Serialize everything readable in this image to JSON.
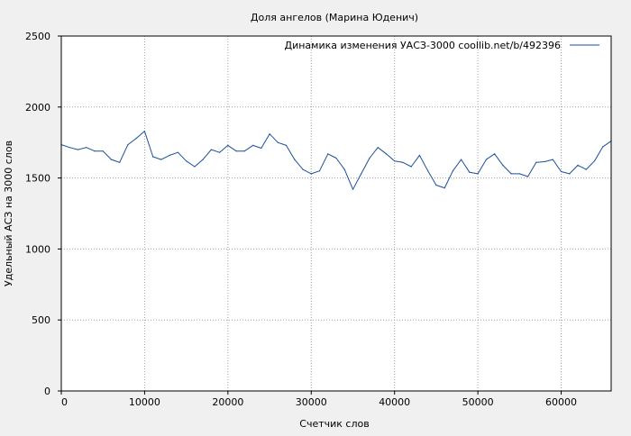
{
  "chart_data": {
    "type": "line",
    "title": "Доля ангелов (Марина Юденич)",
    "xlabel": "Счетчик слов",
    "ylabel": "Удельный АСЗ на 3000 слов",
    "xlim": [
      0,
      66000
    ],
    "ylim": [
      0,
      2500
    ],
    "xticks": [
      0,
      10000,
      20000,
      30000,
      40000,
      50000,
      60000
    ],
    "yticks": [
      0,
      500,
      1000,
      1500,
      2000,
      2500
    ],
    "xtick_labels": [
      "0",
      "10000",
      "20000",
      "30000",
      "40000",
      "50000",
      "60000"
    ],
    "ytick_labels": [
      "0",
      "500",
      "1000",
      "1500",
      "2000",
      "2500"
    ],
    "grid": true,
    "legend_position": "top-right",
    "series": [
      {
        "name": "Динамика изменения УАСЗ-3000  coollib.net/b/492396",
        "color": "#1a4f9c",
        "x": [
          0,
          1000,
          2000,
          3000,
          4000,
          5000,
          6000,
          7000,
          8000,
          9000,
          10000,
          11000,
          12000,
          13000,
          14000,
          15000,
          16000,
          17000,
          18000,
          19000,
          20000,
          21000,
          22000,
          23000,
          24000,
          25000,
          26000,
          27000,
          28000,
          29000,
          30000,
          31000,
          32000,
          33000,
          34000,
          35000,
          36000,
          37000,
          38000,
          39000,
          40000,
          41000,
          42000,
          43000,
          44000,
          45000,
          46000,
          47000,
          48000,
          49000,
          50000,
          51000,
          52000,
          53000,
          54000,
          55000,
          56000,
          57000,
          58000,
          59000,
          60000,
          61000,
          62000,
          63000,
          64000,
          65000,
          66000
        ],
        "y": [
          1735,
          1715,
          1700,
          1715,
          1690,
          1690,
          1630,
          1610,
          1735,
          1780,
          1830,
          1650,
          1630,
          1660,
          1680,
          1620,
          1580,
          1630,
          1700,
          1680,
          1730,
          1690,
          1690,
          1730,
          1710,
          1810,
          1750,
          1730,
          1630,
          1560,
          1530,
          1550,
          1670,
          1640,
          1560,
          1420,
          1530,
          1640,
          1715,
          1670,
          1620,
          1610,
          1580,
          1660,
          1550,
          1450,
          1430,
          1550,
          1630,
          1540,
          1530,
          1630,
          1670,
          1590,
          1530,
          1530,
          1510,
          1610,
          1615,
          1630,
          1545,
          1530,
          1590,
          1560,
          1620,
          1720,
          1760
        ]
      }
    ]
  },
  "style": {
    "background": "#f0f0f0",
    "plot_background": "#ffffff",
    "grid_color": "#a0a0a0",
    "axis_color": "#000000"
  }
}
